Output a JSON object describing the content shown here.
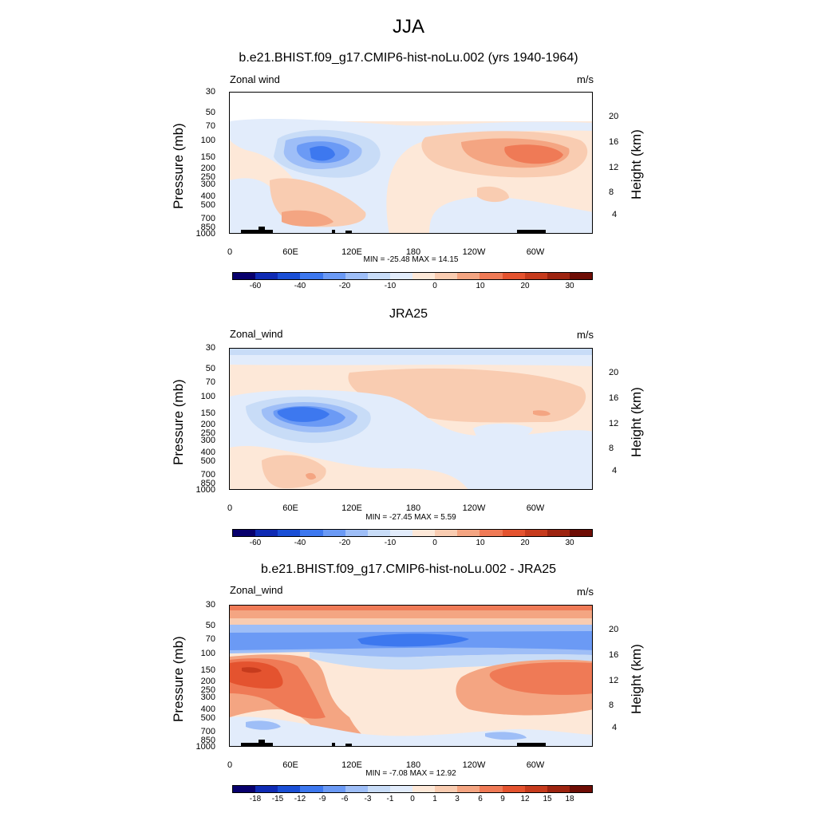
{
  "main_title": "JJA",
  "chart_data": [
    {
      "type": "heatmap",
      "title": "b.e21.BHIST.f09_g17.CMIP6-hist-noLu.002 (yrs 1940-1964)",
      "left_label": "Zonal wind",
      "units": "m/s",
      "ylabel": "Pressure (mb)",
      "ylabel_right": "Height (km)",
      "stats": "MIN = -25.48  MAX =  14.15",
      "colorbar_ticks": [
        "-60",
        "-40",
        "-20",
        "-10",
        "0",
        "10",
        "20",
        "30"
      ],
      "x_ticks": [
        "0",
        "60E",
        "120E",
        "180",
        "120W",
        "60W"
      ],
      "y_ticks": [
        "30",
        "50",
        "70",
        "100",
        "150",
        "200",
        "250",
        "300",
        "400",
        "500",
        "700",
        "850",
        "1000"
      ],
      "height_ticks": [
        "20",
        "16",
        "12",
        "8",
        "4"
      ],
      "min": -25.48,
      "max": 14.15
    },
    {
      "type": "heatmap",
      "title": "JRA25",
      "left_label": "Zonal_wind",
      "units": "m/s",
      "ylabel": "Pressure (mb)",
      "ylabel_right": "Height (km)",
      "stats": "MIN = -27.45  MAX =   5.59",
      "colorbar_ticks": [
        "-60",
        "-40",
        "-20",
        "-10",
        "0",
        "10",
        "20",
        "30"
      ],
      "x_ticks": [
        "0",
        "60E",
        "120E",
        "180",
        "120W",
        "60W"
      ],
      "y_ticks": [
        "30",
        "50",
        "70",
        "100",
        "150",
        "200",
        "250",
        "300",
        "400",
        "500",
        "700",
        "850",
        "1000"
      ],
      "height_ticks": [
        "20",
        "16",
        "12",
        "8",
        "4"
      ],
      "min": -27.45,
      "max": 5.59
    },
    {
      "type": "heatmap",
      "title": "b.e21.BHIST.f09_g17.CMIP6-hist-noLu.002 - JRA25",
      "left_label": "Zonal_wind",
      "units": "m/s",
      "ylabel": "Pressure (mb)",
      "ylabel_right": "Height (km)",
      "stats": "MIN =  -7.08  MAX =  12.92",
      "colorbar_ticks": [
        "-18",
        "-15",
        "-12",
        "-9",
        "-6",
        "-3",
        "-1",
        "0",
        "1",
        "3",
        "6",
        "9",
        "12",
        "15",
        "18"
      ],
      "x_ticks": [
        "0",
        "60E",
        "120E",
        "180",
        "120W",
        "60W"
      ],
      "y_ticks": [
        "30",
        "50",
        "70",
        "100",
        "150",
        "200",
        "250",
        "300",
        "400",
        "500",
        "700",
        "850",
        "1000"
      ],
      "height_ticks": [
        "20",
        "16",
        "12",
        "8",
        "4"
      ],
      "min": -7.08,
      "max": 12.92
    }
  ],
  "colors": {
    "palette": [
      "#08006d",
      "#0f2bb4",
      "#1a4fd6",
      "#3d78ef",
      "#6b9af5",
      "#9ebef7",
      "#c8dcf7",
      "#e2ecfb",
      "#fde8d8",
      "#f9ccb1",
      "#f4a582",
      "#ef7a56",
      "#e4532f",
      "#c63b1d",
      "#9d2410",
      "#6e0d05"
    ],
    "land": "#000000"
  }
}
